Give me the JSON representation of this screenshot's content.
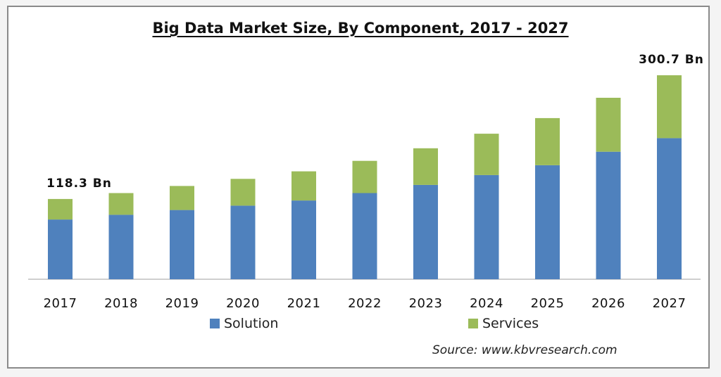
{
  "chart_data": {
    "type": "bar",
    "stacked": true,
    "title": "Big Data Market Size, By Component, 2017 - 2027",
    "categories": [
      "2017",
      "2018",
      "2019",
      "2020",
      "2021",
      "2022",
      "2023",
      "2024",
      "2025",
      "2026",
      "2027"
    ],
    "series": [
      {
        "name": "Solution",
        "color": "#4f81bd",
        "values": [
          88.0,
          95.0,
          102.0,
          108.5,
          116.0,
          127.0,
          139.0,
          153.5,
          168.0,
          188.0,
          208.0
        ]
      },
      {
        "name": "Services",
        "color": "#9bbb59",
        "values": [
          30.3,
          32.0,
          35.5,
          39.5,
          43.0,
          47.5,
          54.0,
          61.0,
          69.5,
          79.5,
          92.7
        ]
      }
    ],
    "data_labels": [
      {
        "category": "2017",
        "text": "118.3  Bn"
      },
      {
        "category": "2027",
        "text": "300.7  Bn"
      }
    ],
    "ylim": [
      0,
      310
    ],
    "grid": false,
    "legend_position": "bottom",
    "source": "Source:  www.kbvresearch.com"
  }
}
